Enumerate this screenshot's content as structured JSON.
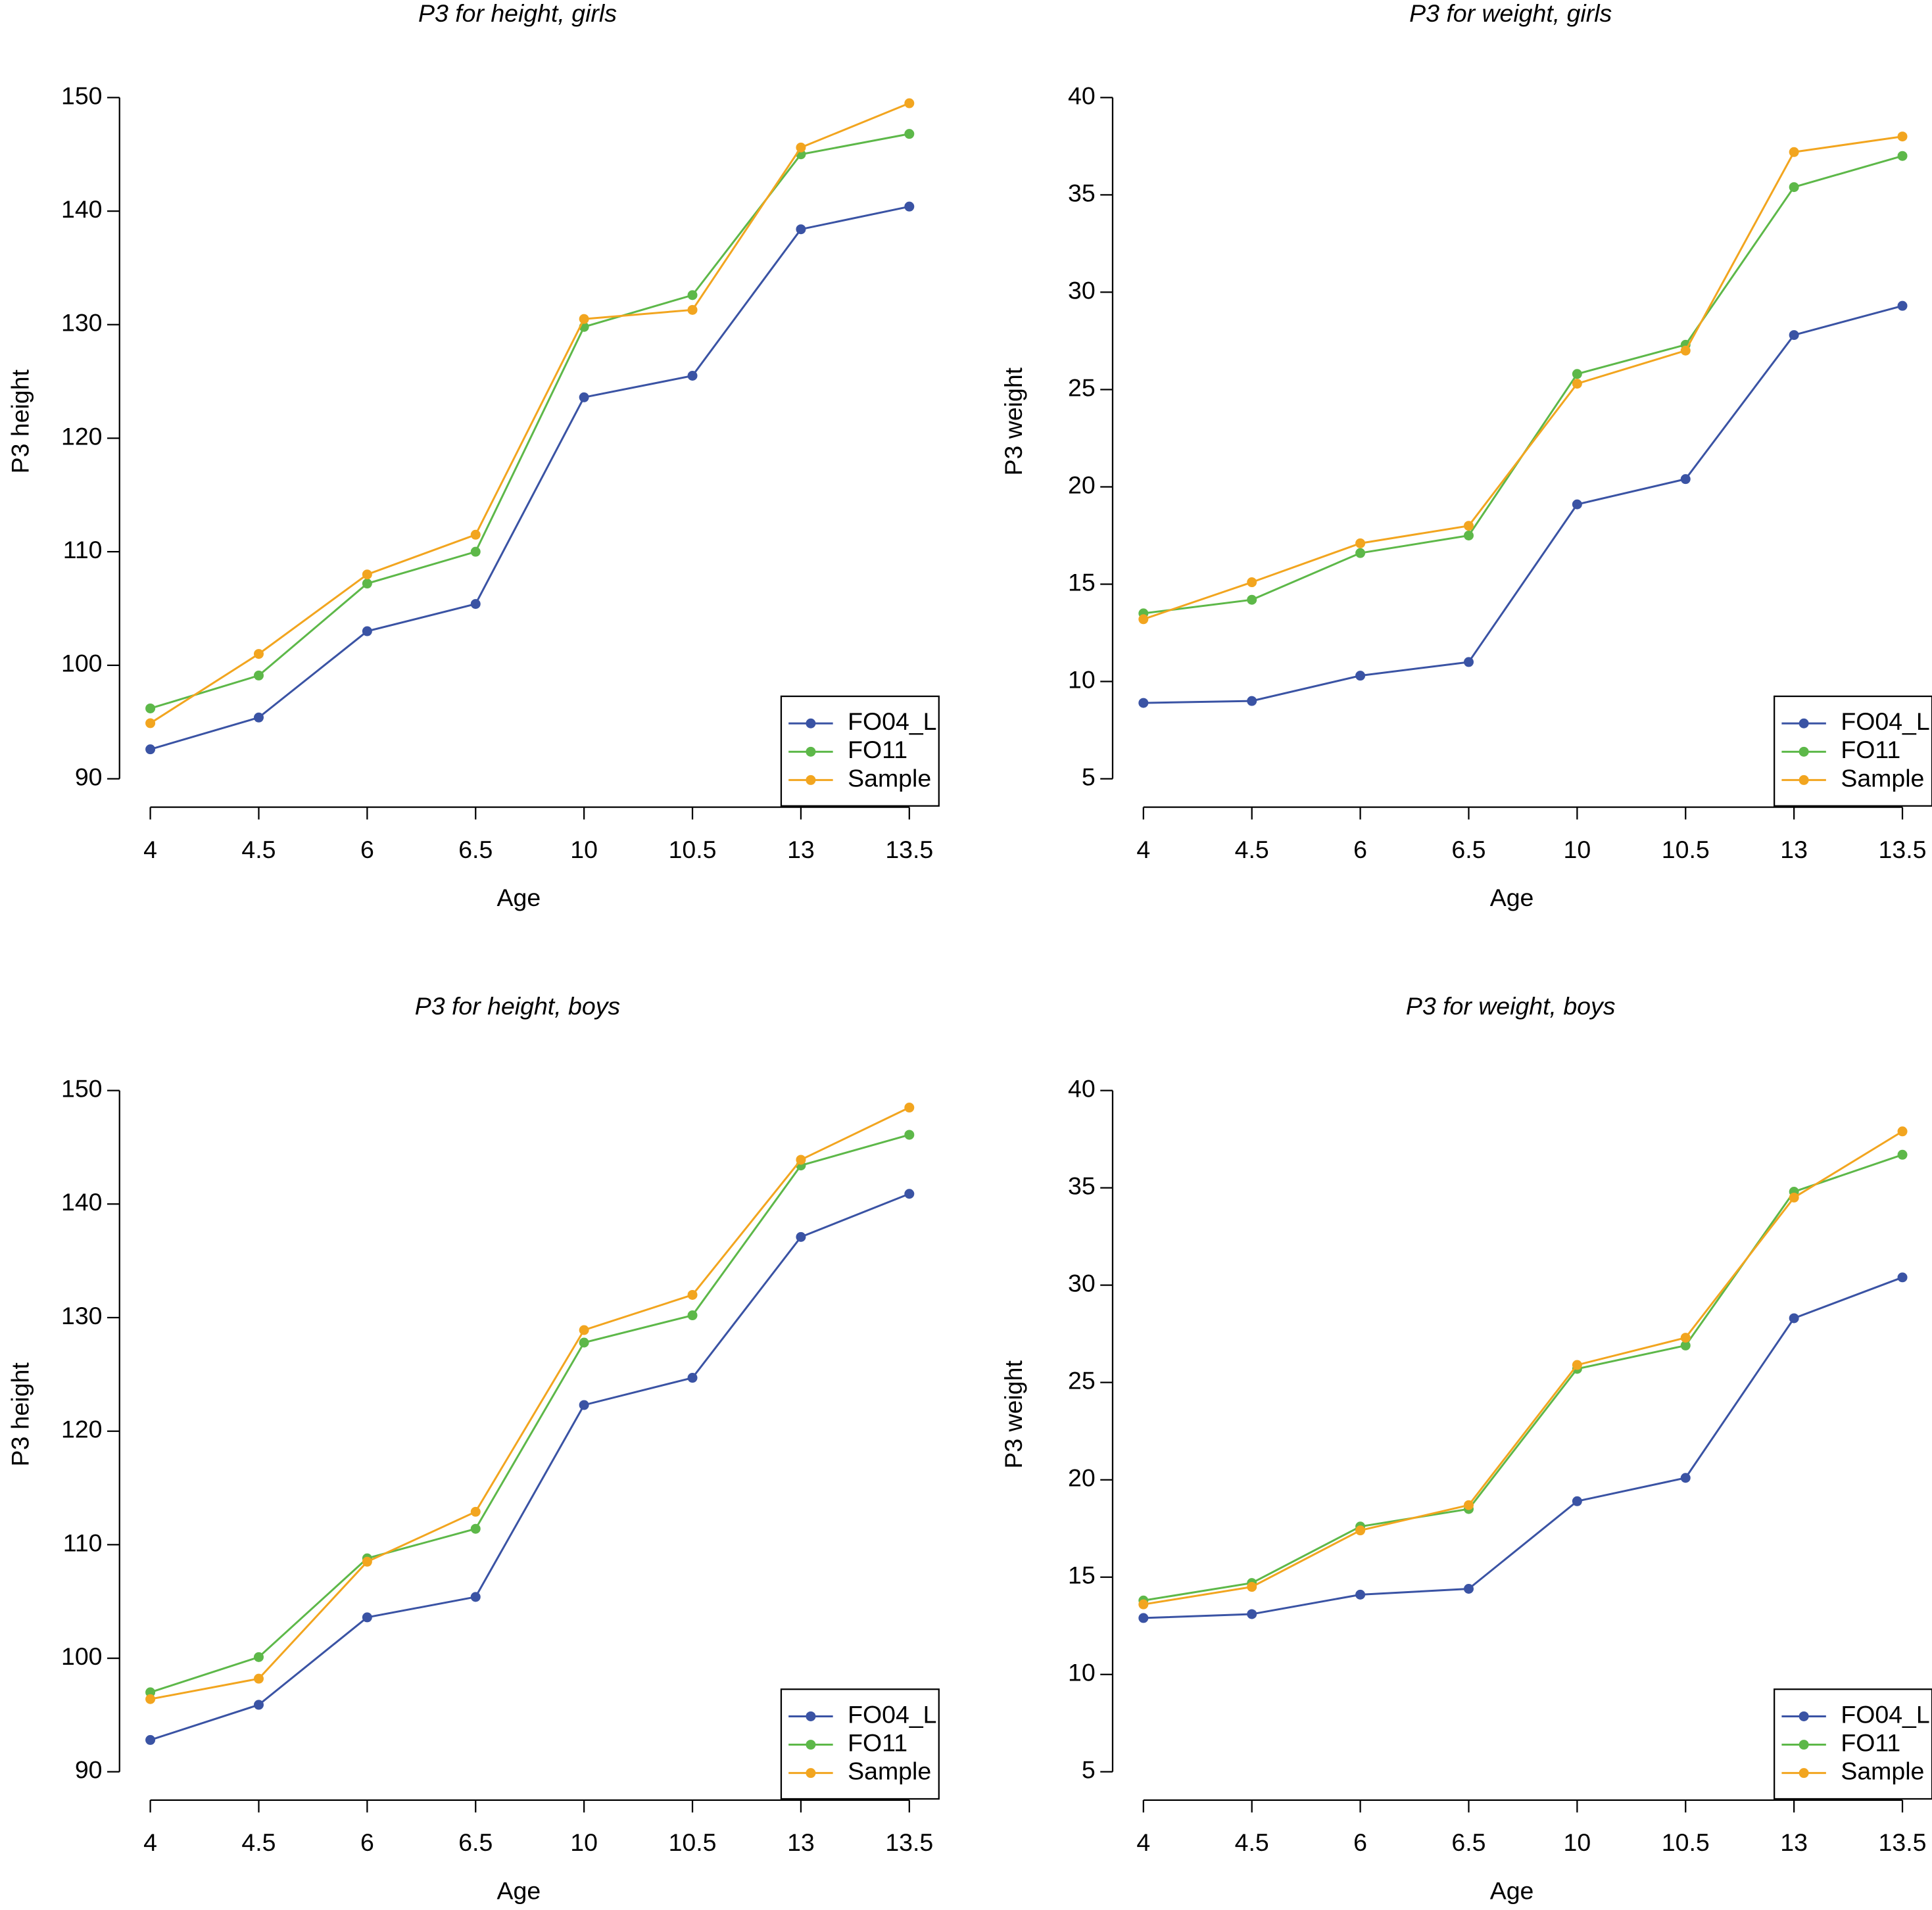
{
  "chart_data": [
    {
      "type": "line",
      "title": "P3 for height, girls",
      "xlabel": "Age",
      "ylabel": "P3 height",
      "categories": [
        "4",
        "4.5",
        "6",
        "6.5",
        "10",
        "10.5",
        "13",
        "13.5"
      ],
      "series": [
        {
          "name": "FO04_L",
          "color": "#3a53a4",
          "values": [
            92.6,
            95.4,
            103.0,
            105.4,
            123.6,
            125.5,
            138.4,
            140.4
          ]
        },
        {
          "name": "FO11",
          "color": "#5db849",
          "values": [
            96.2,
            99.1,
            107.2,
            110.0,
            129.8,
            132.6,
            145.0,
            146.8
          ]
        },
        {
          "name": "Sample",
          "color": "#f2a51f",
          "values": [
            94.9,
            101.0,
            108.0,
            111.5,
            130.5,
            131.3,
            145.6,
            149.5
          ]
        }
      ],
      "ylim": [
        90,
        150
      ],
      "yticks": [
        90,
        100,
        110,
        120,
        130,
        140,
        150
      ],
      "legend": "bottom right"
    },
    {
      "type": "line",
      "title": "P3 for weight, girls",
      "xlabel": "Age",
      "ylabel": "P3 weight",
      "categories": [
        "4",
        "4.5",
        "6",
        "6.5",
        "10",
        "10.5",
        "13",
        "13.5"
      ],
      "series": [
        {
          "name": "FO04_L",
          "color": "#3a53a4",
          "values": [
            8.9,
            9.0,
            10.3,
            11.0,
            19.1,
            20.4,
            27.8,
            29.3
          ]
        },
        {
          "name": "FO11",
          "color": "#5db849",
          "values": [
            13.5,
            14.2,
            16.6,
            17.5,
            25.8,
            27.3,
            35.4,
            37.0
          ]
        },
        {
          "name": "Sample",
          "color": "#f2a51f",
          "values": [
            13.2,
            15.1,
            17.1,
            18.0,
            25.3,
            27.0,
            37.2,
            38.0
          ]
        }
      ],
      "ylim": [
        5,
        40
      ],
      "yticks": [
        5,
        10,
        15,
        20,
        25,
        30,
        35,
        40
      ],
      "legend": "bottom right"
    },
    {
      "type": "line",
      "title": "P3 for height, boys",
      "xlabel": "Age",
      "ylabel": "P3 height",
      "categories": [
        "4",
        "4.5",
        "6",
        "6.5",
        "10",
        "10.5",
        "13",
        "13.5"
      ],
      "series": [
        {
          "name": "FO04_L",
          "color": "#3a53a4",
          "values": [
            92.8,
            95.9,
            103.6,
            105.4,
            122.3,
            124.7,
            137.1,
            140.9
          ]
        },
        {
          "name": "FO11",
          "color": "#5db849",
          "values": [
            97.0,
            100.1,
            108.8,
            111.4,
            127.8,
            130.2,
            143.4,
            146.1
          ]
        },
        {
          "name": "Sample",
          "color": "#f2a51f",
          "values": [
            96.4,
            98.2,
            108.5,
            112.9,
            128.9,
            132.0,
            143.9,
            148.5
          ]
        }
      ],
      "ylim": [
        90,
        150
      ],
      "yticks": [
        90,
        100,
        110,
        120,
        130,
        140,
        150
      ],
      "legend": "bottom right"
    },
    {
      "type": "line",
      "title": "P3 for weight, boys",
      "xlabel": "Age",
      "ylabel": "P3 weight",
      "categories": [
        "4",
        "4.5",
        "6",
        "6.5",
        "10",
        "10.5",
        "13",
        "13.5"
      ],
      "series": [
        {
          "name": "FO04_L",
          "color": "#3a53a4",
          "values": [
            12.9,
            13.1,
            14.1,
            14.4,
            18.9,
            20.1,
            28.3,
            30.4
          ]
        },
        {
          "name": "FO11",
          "color": "#5db849",
          "values": [
            13.8,
            14.7,
            17.6,
            18.5,
            25.7,
            26.9,
            34.8,
            36.7
          ]
        },
        {
          "name": "Sample",
          "color": "#f2a51f",
          "values": [
            13.6,
            14.5,
            17.4,
            18.7,
            25.9,
            27.3,
            34.5,
            37.9
          ]
        }
      ],
      "ylim": [
        5,
        40
      ],
      "yticks": [
        5,
        10,
        15,
        20,
        25,
        30,
        35,
        40
      ],
      "legend": "bottom right"
    }
  ]
}
